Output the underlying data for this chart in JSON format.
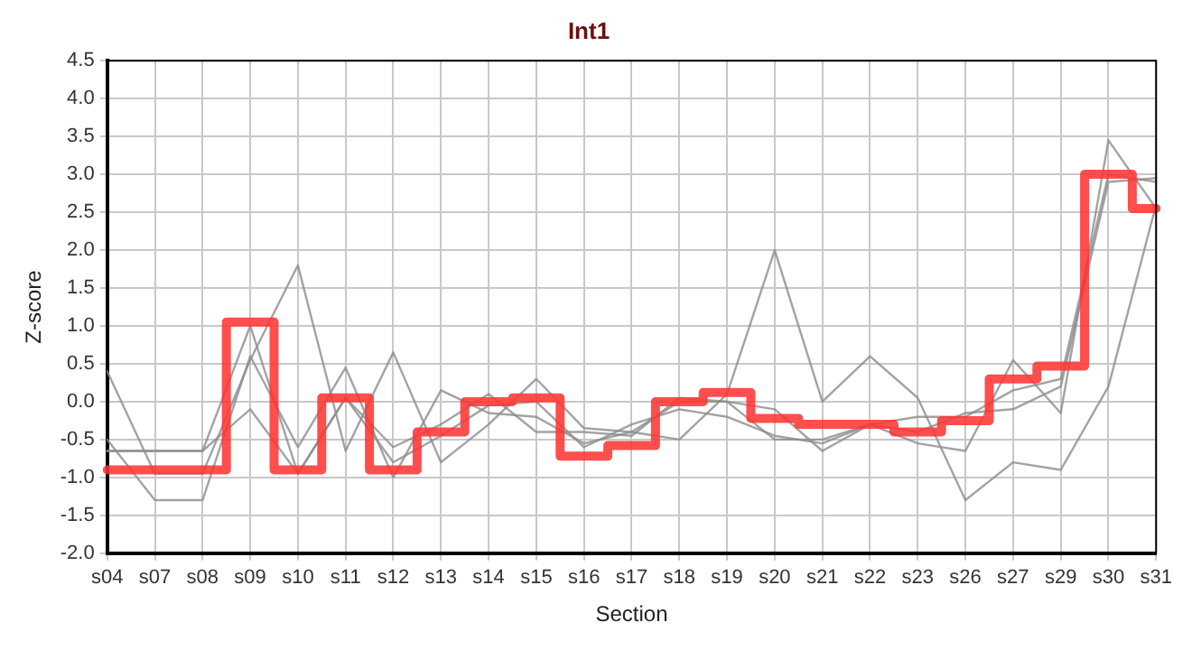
{
  "chart_data": {
    "type": "line",
    "title": "Int1",
    "xlabel": "Section",
    "ylabel": "Z-score",
    "categories": [
      "s04",
      "s07",
      "s08",
      "s09",
      "s10",
      "s11",
      "s12",
      "s13",
      "s14",
      "s15",
      "s16",
      "s17",
      "s18",
      "s19",
      "s20",
      "s21",
      "s22",
      "s23",
      "s26",
      "s27",
      "s29",
      "s30",
      "s31"
    ],
    "series": [
      {
        "type": "line",
        "color": "#8c8c8c",
        "values": [
          0.4,
          -0.95,
          -0.95,
          0.55,
          1.8,
          -0.65,
          0.65,
          -0.8,
          -0.3,
          0.3,
          -0.35,
          -0.4,
          -0.5,
          0.1,
          2.0,
          0.0,
          0.6,
          0.05,
          -1.3,
          -0.8,
          -0.9,
          0.2,
          2.6
        ]
      },
      {
        "type": "line",
        "color": "#8c8c8c",
        "values": [
          -0.5,
          -1.3,
          -1.3,
          0.6,
          -0.6,
          0.45,
          -1.0,
          0.15,
          -0.15,
          -0.2,
          -0.55,
          -0.4,
          0.0,
          0.0,
          -0.5,
          -0.5,
          -0.3,
          -0.55,
          -0.65,
          0.55,
          -0.15,
          3.45,
          2.55
        ]
      },
      {
        "type": "line",
        "color": "#8c8c8c",
        "values": [
          -0.65,
          -0.65,
          -0.65,
          1.0,
          -0.95,
          0.05,
          -0.6,
          -0.3,
          0.1,
          -0.4,
          -0.4,
          -0.45,
          0.05,
          0.0,
          -0.1,
          -0.65,
          -0.3,
          -0.2,
          -0.2,
          0.15,
          0.3,
          3.0,
          2.9
        ]
      },
      {
        "type": "line",
        "color": "#8c8c8c",
        "values": [
          -0.65,
          -0.65,
          -0.65,
          -0.1,
          -0.95,
          0.05,
          -0.8,
          -0.45,
          -0.05,
          0.0,
          -0.6,
          -0.3,
          -0.1,
          -0.2,
          -0.45,
          -0.55,
          -0.3,
          -0.4,
          -0.15,
          -0.1,
          0.2,
          2.9,
          2.95
        ]
      },
      {
        "type": "step",
        "color": "#ff3333",
        "values": [
          -0.9,
          -0.9,
          -0.9,
          1.05,
          -0.9,
          0.05,
          -0.9,
          -0.4,
          0.0,
          0.05,
          -0.72,
          -0.58,
          0.0,
          0.12,
          -0.22,
          -0.3,
          -0.3,
          -0.4,
          -0.25,
          0.3,
          0.47,
          3.0,
          2.55
        ]
      }
    ],
    "ylim": [
      -2.0,
      4.5
    ],
    "yticks": [
      {
        "value": -2.0,
        "label": "-2.0"
      },
      {
        "value": -1.5,
        "label": "-1.5"
      },
      {
        "value": -1.0,
        "label": "-1.0"
      },
      {
        "value": -0.5,
        "label": "-0.5"
      },
      {
        "value": 0,
        "label": "0.0"
      },
      {
        "value": 0.5,
        "label": "0.5"
      },
      {
        "value": 1.0,
        "label": "1.0"
      },
      {
        "value": 1.5,
        "label": "1.5"
      },
      {
        "value": 2.0,
        "label": "2.0"
      },
      {
        "value": 2.5,
        "label": "2.5"
      },
      {
        "value": 3.0,
        "label": "3.0"
      },
      {
        "value": 3.5,
        "label": "3.5"
      },
      {
        "value": 4.0,
        "label": "4.0"
      },
      {
        "value": 4.5,
        "label": "4.5"
      }
    ],
    "grid": true,
    "legend": false,
    "marker": "none",
    "line_style": "solid"
  }
}
